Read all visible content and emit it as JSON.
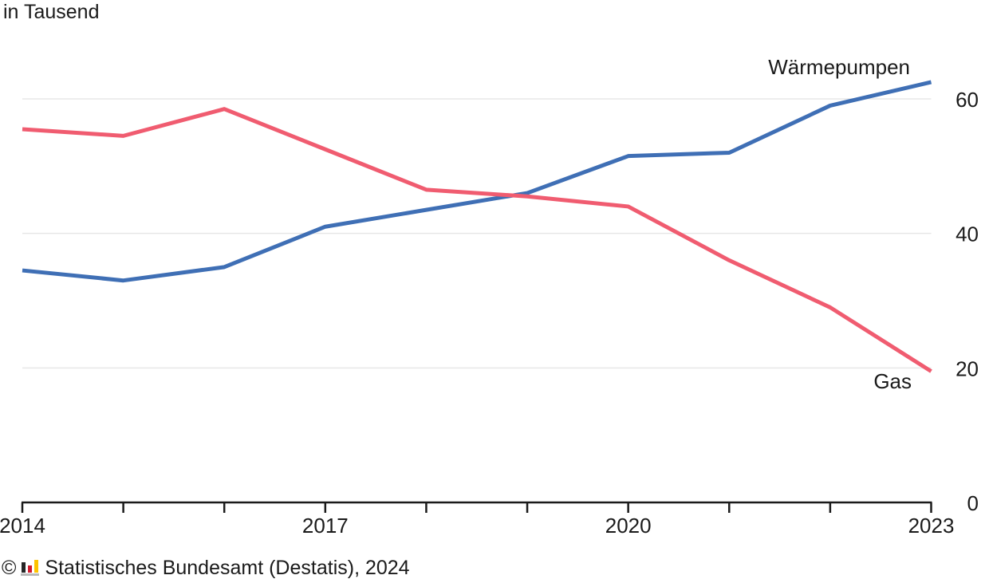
{
  "page": {
    "background": "#ffffff",
    "text_color": "#1a1a1a"
  },
  "chart_data": {
    "type": "line",
    "title": "in Tausend",
    "xlabel": "",
    "ylabel": "in Tausend",
    "x": [
      2014,
      2015,
      2016,
      2017,
      2018,
      2019,
      2020,
      2021,
      2022,
      2023
    ],
    "x_tick_labels": [
      2014,
      2017,
      2020,
      2023
    ],
    "y_ticks": [
      0,
      20,
      40,
      60
    ],
    "y_tick_side": "right",
    "xlim": [
      2014,
      2023
    ],
    "ylim": [
      0,
      67.5
    ],
    "grid": "horizontal-only",
    "legend": "direct-labels-at-line-ends",
    "axis_color": "#1a1a1a",
    "gridline_color": "#e7e7e7",
    "series": [
      {
        "name": "Wärmepumpen",
        "color": "#3f6fb5",
        "values": [
          34.5,
          33,
          35,
          41,
          43.5,
          46,
          51.5,
          52,
          59,
          62.5
        ]
      },
      {
        "name": "Gas",
        "color": "#f05c70",
        "values": [
          55.5,
          54.5,
          58.5,
          52.5,
          46.5,
          45.5,
          44,
          36,
          29,
          19.5
        ]
      }
    ]
  },
  "footer": {
    "copyright_symbol": "©",
    "source": "Statistisches Bundesamt (Destatis), 2024",
    "logo": {
      "icon": "destatis-bar-chart-logo",
      "bar_colors": [
        "#262626",
        "#d11a2d",
        "#fdc300"
      ],
      "base_color": "#b8b8b8"
    }
  }
}
